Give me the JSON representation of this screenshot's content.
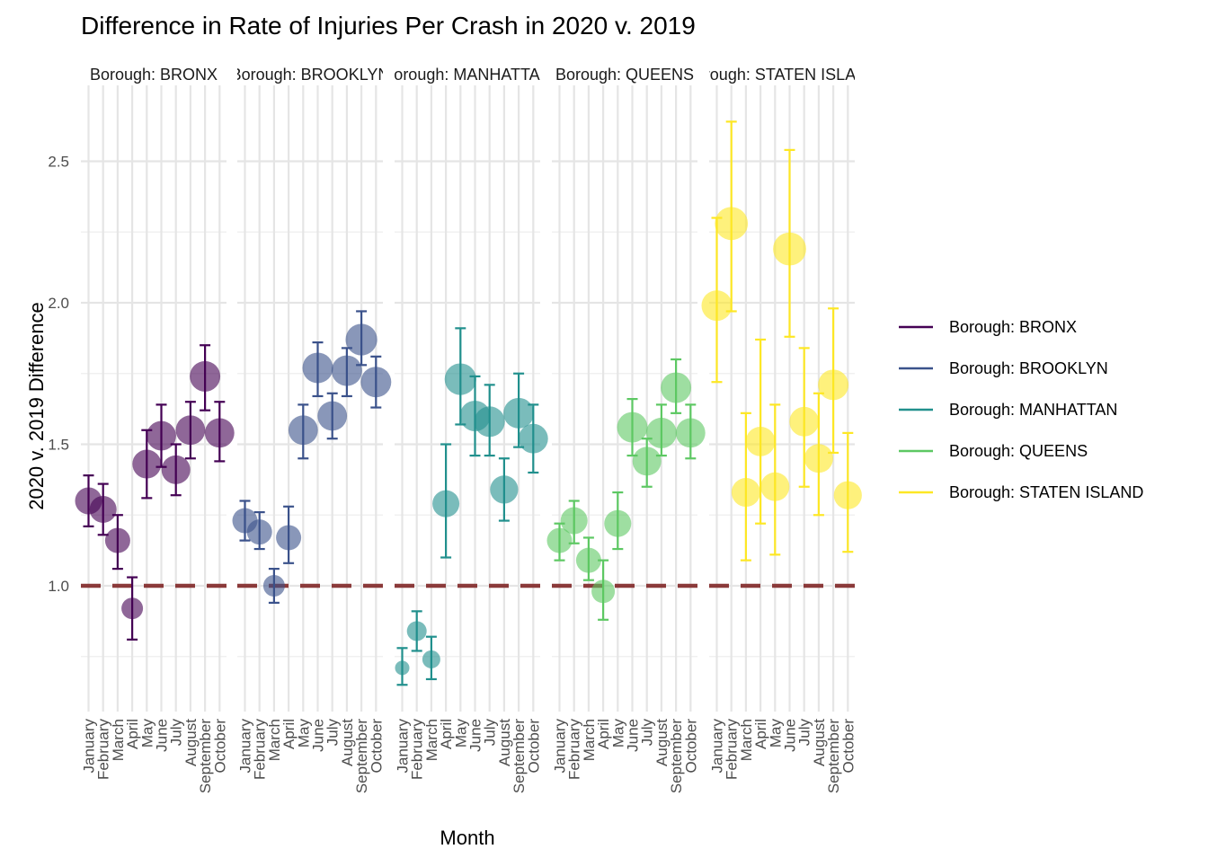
{
  "chart_data": {
    "type": "scatter",
    "title": "Difference in Rate of Injuries Per Crash in 2020 v. 2019",
    "xlabel": "Month",
    "ylabel": "2020 v. 2019 Difference",
    "ylim": [
      0.6,
      2.75
    ],
    "yticks": [
      "1.0",
      "1.5",
      "2.0",
      "2.5"
    ],
    "reference_line": 1.0,
    "reference_color": "#8b3a3a",
    "grid": true,
    "legend_position": "right",
    "categories": [
      "January",
      "February",
      "March",
      "April",
      "May",
      "June",
      "July",
      "August",
      "September",
      "October"
    ],
    "series": [
      {
        "name": "Borough: BRONX",
        "strip": "Borough: BRONX",
        "color": "#440154",
        "values": [
          1.3,
          1.27,
          1.16,
          0.92,
          1.43,
          1.53,
          1.41,
          1.55,
          1.74,
          1.54
        ],
        "lower": [
          1.21,
          1.18,
          1.06,
          0.81,
          1.31,
          1.42,
          1.32,
          1.45,
          1.62,
          1.44
        ],
        "upper": [
          1.39,
          1.36,
          1.25,
          1.03,
          1.55,
          1.64,
          1.5,
          1.65,
          1.85,
          1.65
        ],
        "size": [
          0.55,
          0.55,
          0.5,
          0.4,
          0.6,
          0.62,
          0.6,
          0.62,
          0.65,
          0.62
        ]
      },
      {
        "name": "Borough: BROOKLYN",
        "strip": "Borough: BROOKLYN",
        "color": "#3b528b",
        "values": [
          1.23,
          1.19,
          1.0,
          1.17,
          1.55,
          1.77,
          1.6,
          1.76,
          1.87,
          1.72
        ],
        "lower": [
          1.16,
          1.13,
          0.94,
          1.08,
          1.45,
          1.67,
          1.52,
          1.67,
          1.78,
          1.63
        ],
        "upper": [
          1.3,
          1.26,
          1.06,
          1.28,
          1.64,
          1.86,
          1.68,
          1.84,
          1.97,
          1.81
        ],
        "size": [
          0.5,
          0.5,
          0.4,
          0.5,
          0.62,
          0.65,
          0.62,
          0.65,
          0.68,
          0.65
        ]
      },
      {
        "name": "Borough: MANHATTAN",
        "strip": "Borough: MANHATTAN",
        "color": "#21908d",
        "values": [
          0.71,
          0.84,
          0.74,
          1.29,
          1.73,
          1.6,
          1.58,
          1.34,
          1.61,
          1.52
        ],
        "lower": [
          0.65,
          0.77,
          0.67,
          1.1,
          1.57,
          1.46,
          1.46,
          1.23,
          1.49,
          1.4
        ],
        "upper": [
          0.78,
          0.91,
          0.82,
          1.5,
          1.91,
          1.74,
          1.71,
          1.45,
          1.75,
          1.64
        ],
        "size": [
          0.2,
          0.35,
          0.3,
          0.55,
          0.68,
          0.65,
          0.65,
          0.58,
          0.65,
          0.62
        ]
      },
      {
        "name": "Borough: QUEENS",
        "strip": "Borough: QUEENS",
        "color": "#5dc863",
        "values": [
          1.16,
          1.23,
          1.09,
          0.98,
          1.22,
          1.56,
          1.44,
          1.54,
          1.7,
          1.54
        ],
        "lower": [
          1.09,
          1.15,
          1.02,
          0.88,
          1.13,
          1.46,
          1.35,
          1.46,
          1.61,
          1.45
        ],
        "upper": [
          1.22,
          1.3,
          1.17,
          1.09,
          1.33,
          1.66,
          1.52,
          1.64,
          1.8,
          1.64
        ],
        "size": [
          0.5,
          0.55,
          0.5,
          0.45,
          0.55,
          0.65,
          0.6,
          0.65,
          0.65,
          0.62
        ]
      },
      {
        "name": "Borough: STATEN ISLAND",
        "strip": "Borough: STATEN ISLAND",
        "color": "#fde725",
        "values": [
          1.99,
          2.28,
          1.33,
          1.51,
          1.35,
          2.19,
          1.58,
          1.45,
          1.71,
          1.32
        ],
        "lower": [
          1.72,
          1.97,
          1.09,
          1.22,
          1.11,
          1.88,
          1.35,
          1.25,
          1.47,
          1.12
        ],
        "upper": [
          2.3,
          2.64,
          1.61,
          1.87,
          1.64,
          2.54,
          1.84,
          1.68,
          1.98,
          1.54
        ],
        "size": [
          0.65,
          0.72,
          0.6,
          0.62,
          0.6,
          0.72,
          0.62,
          0.6,
          0.65,
          0.58
        ]
      }
    ]
  }
}
